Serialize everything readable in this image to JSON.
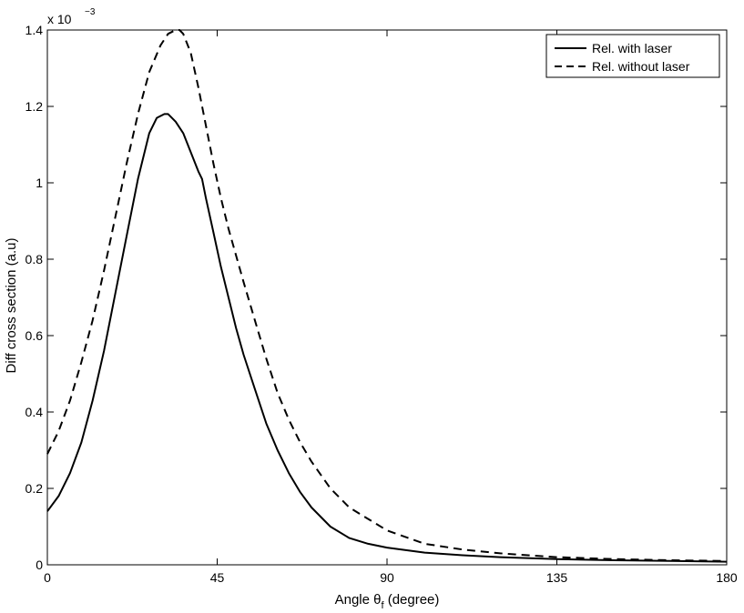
{
  "chart_data": {
    "type": "line",
    "xlabel_main": "Angle θ",
    "xlabel_sub": "f",
    "xlabel_tail": " (degree)",
    "ylabel": "Diff cross section (a.u)",
    "y_exponent_base": "x 10",
    "y_exponent_power": "−3",
    "xlim": [
      0,
      180
    ],
    "ylim": [
      0,
      1.4
    ],
    "xticks": [
      0,
      45,
      90,
      135,
      180
    ],
    "xtick_labels": [
      "0",
      "45",
      "90",
      "135",
      "180"
    ],
    "yticks": [
      0,
      0.2,
      0.4,
      0.6,
      0.8,
      1.0,
      1.2,
      1.4
    ],
    "ytick_labels": [
      "0",
      "0.2",
      "0.4",
      "0.6",
      "0.8",
      "1",
      "1.2",
      "1.4"
    ],
    "grid": false,
    "legend_position": "top-right",
    "series": [
      {
        "name": "Rel. with laser",
        "style": "solid",
        "color": "#000000",
        "x": [
          0,
          3,
          6,
          9,
          12,
          15,
          18,
          21,
          24,
          27,
          29,
          31,
          32,
          34,
          36,
          38,
          40,
          41,
          42,
          44,
          46,
          48,
          50,
          52,
          55,
          58,
          61,
          64,
          67,
          70,
          75,
          80,
          85,
          90,
          100,
          110,
          120,
          135,
          150,
          165,
          180
        ],
        "y": [
          0.14,
          0.18,
          0.24,
          0.32,
          0.43,
          0.56,
          0.71,
          0.86,
          1.01,
          1.13,
          1.17,
          1.18,
          1.18,
          1.16,
          1.13,
          1.08,
          1.03,
          1.01,
          0.96,
          0.87,
          0.78,
          0.7,
          0.62,
          0.55,
          0.46,
          0.37,
          0.3,
          0.24,
          0.19,
          0.15,
          0.1,
          0.07,
          0.055,
          0.045,
          0.032,
          0.025,
          0.02,
          0.015,
          0.012,
          0.01,
          0.008
        ]
      },
      {
        "name": "Rel. without laser",
        "style": "dashed",
        "color": "#000000",
        "x": [
          0,
          3,
          6,
          9,
          12,
          15,
          18,
          21,
          24,
          27,
          30,
          32,
          34,
          35,
          36,
          38,
          40,
          42,
          44,
          46,
          48,
          50,
          52,
          55,
          58,
          61,
          64,
          67,
          70,
          75,
          80,
          85,
          90,
          100,
          110,
          120,
          135,
          150,
          165,
          180
        ],
        "y": [
          0.29,
          0.35,
          0.43,
          0.53,
          0.64,
          0.77,
          0.91,
          1.05,
          1.18,
          1.29,
          1.36,
          1.39,
          1.4,
          1.4,
          1.39,
          1.34,
          1.25,
          1.15,
          1.05,
          0.96,
          0.88,
          0.81,
          0.74,
          0.64,
          0.54,
          0.45,
          0.38,
          0.32,
          0.27,
          0.2,
          0.15,
          0.12,
          0.09,
          0.055,
          0.04,
          0.03,
          0.02,
          0.015,
          0.012,
          0.01
        ]
      }
    ]
  }
}
